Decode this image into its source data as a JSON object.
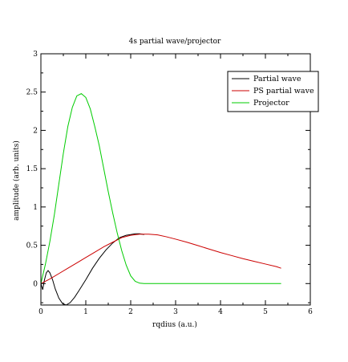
{
  "chart_data": {
    "type": "line",
    "title": "4s partial wave/projector",
    "xlabel": "rqdius (a.u.)",
    "ylabel": "amplitude (arb. units)",
    "xlim": [
      0,
      6
    ],
    "ylim": [
      -0.28,
      3.0
    ],
    "xticks": [
      0,
      1,
      2,
      3,
      4,
      5,
      6
    ],
    "yticks": [
      0,
      0.5,
      1,
      1.5,
      2,
      2.5,
      3
    ],
    "xtick_labels": [
      "0",
      "1",
      "2",
      "3",
      "4",
      "5",
      "6"
    ],
    "ytick_labels": [
      "0",
      "0.5",
      "1",
      "1.5",
      "2",
      "2.5",
      "3"
    ],
    "grid": false,
    "legend_position": "top-right",
    "series": [
      {
        "name": "Partial wave",
        "color": "#000000",
        "x": [
          0.0,
          0.04,
          0.08,
          0.12,
          0.16,
          0.2,
          0.26,
          0.32,
          0.4,
          0.48,
          0.56,
          0.65,
          0.75,
          0.85,
          1.0,
          1.15,
          1.3,
          1.45,
          1.6,
          1.75,
          1.9,
          2.0,
          2.1,
          2.2,
          2.3
        ],
        "y": [
          0.0,
          -0.08,
          0.05,
          0.14,
          0.17,
          0.14,
          0.05,
          -0.07,
          -0.19,
          -0.26,
          -0.28,
          -0.25,
          -0.18,
          -0.09,
          0.05,
          0.2,
          0.33,
          0.44,
          0.53,
          0.6,
          0.63,
          0.64,
          0.65,
          0.65,
          0.64
        ]
      },
      {
        "name": "PS partial wave",
        "color": "#cc0000",
        "x": [
          0.0,
          0.2,
          0.4,
          0.6,
          0.8,
          1.0,
          1.2,
          1.4,
          1.6,
          1.8,
          2.0,
          2.2,
          2.4,
          2.6,
          2.8,
          3.0,
          3.25,
          3.5,
          3.75,
          4.0,
          4.25,
          4.5,
          4.75,
          5.0,
          5.25,
          5.35
        ],
        "y": [
          0.0,
          0.06,
          0.13,
          0.2,
          0.27,
          0.34,
          0.41,
          0.48,
          0.54,
          0.6,
          0.63,
          0.645,
          0.645,
          0.635,
          0.61,
          0.58,
          0.54,
          0.495,
          0.45,
          0.405,
          0.365,
          0.325,
          0.29,
          0.255,
          0.22,
          0.2
        ]
      },
      {
        "name": "Projector",
        "color": "#00cc00",
        "x": [
          0.0,
          0.1,
          0.2,
          0.3,
          0.4,
          0.5,
          0.6,
          0.7,
          0.8,
          0.9,
          1.0,
          1.1,
          1.2,
          1.3,
          1.4,
          1.5,
          1.6,
          1.7,
          1.8,
          1.9,
          2.0,
          2.1,
          2.2,
          2.3,
          2.5,
          3.0,
          4.0,
          5.0,
          5.35
        ],
        "y": [
          0.0,
          0.25,
          0.55,
          0.9,
          1.3,
          1.7,
          2.05,
          2.3,
          2.45,
          2.48,
          2.43,
          2.28,
          2.05,
          1.8,
          1.5,
          1.2,
          0.92,
          0.66,
          0.43,
          0.24,
          0.1,
          0.03,
          0.005,
          0.0,
          0.0,
          0.0,
          0.0,
          0.0,
          0.0
        ]
      }
    ]
  }
}
